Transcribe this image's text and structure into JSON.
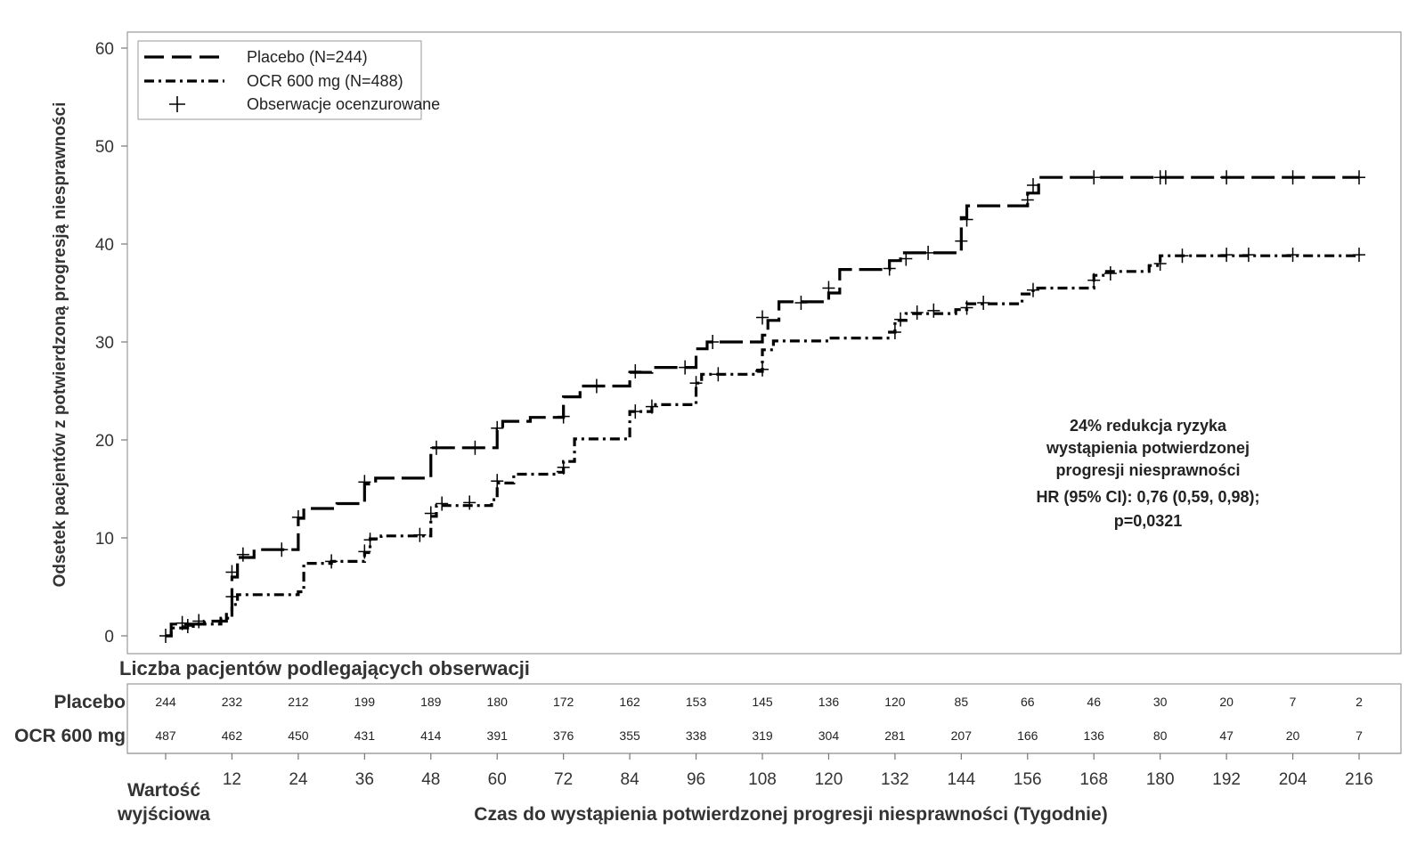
{
  "chart_data": {
    "type": "line",
    "title": "",
    "ylabel": "Odsetek pacjentów z potwierdzoną progresją niesprawności",
    "xlabel": "Czas do wystąpienia potwierdzonej progresji niesprawności (Tygodnie)",
    "baseline_label": [
      "Wartość",
      "wyjściowa"
    ],
    "ylim": [
      0,
      60
    ],
    "xlim": [
      0,
      216
    ],
    "yticks": [
      0,
      10,
      20,
      30,
      40,
      50,
      60
    ],
    "xticks": [
      12,
      24,
      36,
      48,
      60,
      72,
      84,
      96,
      108,
      120,
      132,
      144,
      156,
      168,
      180,
      192,
      204,
      216
    ],
    "legend_position": "top-left",
    "legend": {
      "placebo": "Placebo (N=244)",
      "ocr": "OCR 600 mg (N=488)",
      "censored": "Obserwacje ocenzurowane"
    },
    "annotation": [
      "24% redukcja ryzyka",
      "wystąpienia  potwierdzonej",
      "progresji niesprawności",
      "HR (95% CI): 0,76 (0,59, 0,98);",
      "p=0,0321"
    ],
    "series": [
      {
        "name": "Placebo (N=244)",
        "style": "dashed",
        "color": "#000000",
        "steps": [
          [
            0,
            0
          ],
          [
            1,
            1.2
          ],
          [
            7,
            1.5
          ],
          [
            11,
            2.5
          ],
          [
            12,
            6.0
          ],
          [
            13,
            8.0
          ],
          [
            16,
            8.8
          ],
          [
            24,
            12.0
          ],
          [
            25,
            13.0
          ],
          [
            31,
            13.5
          ],
          [
            36,
            15.5
          ],
          [
            38,
            16.1
          ],
          [
            48,
            19.2
          ],
          [
            60,
            21.0
          ],
          [
            61,
            21.9
          ],
          [
            66,
            22.3
          ],
          [
            72,
            24.4
          ],
          [
            75,
            25.5
          ],
          [
            84,
            26.9
          ],
          [
            88,
            27.4
          ],
          [
            96,
            29.3
          ],
          [
            98,
            30.0
          ],
          [
            108,
            30.7
          ],
          [
            109,
            32.2
          ],
          [
            111,
            34.1
          ],
          [
            120,
            35.0
          ],
          [
            122,
            37.4
          ],
          [
            131,
            38.3
          ],
          [
            133,
            39.1
          ],
          [
            144,
            42.7
          ],
          [
            145,
            43.9
          ],
          [
            156,
            45.2
          ],
          [
            158,
            46.8
          ],
          [
            216,
            46.8
          ]
        ],
        "censored": [
          [
            3,
            1.3
          ],
          [
            6,
            1.5
          ],
          [
            12,
            6.5
          ],
          [
            14,
            8.3
          ],
          [
            21,
            8.8
          ],
          [
            24,
            12.1
          ],
          [
            36,
            15.7
          ],
          [
            49,
            19.2
          ],
          [
            56,
            19.2
          ],
          [
            60,
            21.2
          ],
          [
            72,
            22.4
          ],
          [
            78,
            25.5
          ],
          [
            85,
            27.0
          ],
          [
            94,
            27.4
          ],
          [
            99,
            30.0
          ],
          [
            108,
            32.5
          ],
          [
            115,
            34.0
          ],
          [
            120,
            35.5
          ],
          [
            131,
            37.5
          ],
          [
            134,
            38.5
          ],
          [
            138,
            39.1
          ],
          [
            144,
            40.3
          ],
          [
            145,
            42.5
          ],
          [
            156,
            44.5
          ],
          [
            157,
            46.0
          ],
          [
            168,
            46.8
          ],
          [
            180,
            46.8
          ],
          [
            181,
            46.8
          ],
          [
            192,
            46.8
          ],
          [
            204,
            46.8
          ],
          [
            216,
            46.8
          ]
        ]
      },
      {
        "name": "OCR 600 mg (N=488)",
        "style": "dash-dot",
        "color": "#000000",
        "steps": [
          [
            0,
            0
          ],
          [
            1,
            0.8
          ],
          [
            5,
            1.2
          ],
          [
            10,
            1.8
          ],
          [
            12,
            3.2
          ],
          [
            13,
            4.2
          ],
          [
            24,
            4.5
          ],
          [
            25,
            7.4
          ],
          [
            30,
            7.6
          ],
          [
            36,
            8.5
          ],
          [
            37,
            9.9
          ],
          [
            39,
            10.2
          ],
          [
            48,
            12.2
          ],
          [
            49,
            13.3
          ],
          [
            59,
            13.9
          ],
          [
            60,
            15.6
          ],
          [
            63,
            16.5
          ],
          [
            71,
            16.7
          ],
          [
            72,
            17.8
          ],
          [
            74,
            20.1
          ],
          [
            84,
            22.9
          ],
          [
            88,
            23.6
          ],
          [
            96,
            25.8
          ],
          [
            97,
            26.7
          ],
          [
            107,
            27.0
          ],
          [
            108,
            29.2
          ],
          [
            110,
            30.1
          ],
          [
            120,
            30.4
          ],
          [
            131,
            31.0
          ],
          [
            132,
            32.2
          ],
          [
            134,
            32.9
          ],
          [
            143,
            33.3
          ],
          [
            145,
            33.9
          ],
          [
            155,
            34.9
          ],
          [
            157,
            35.5
          ],
          [
            168,
            36.8
          ],
          [
            170,
            37.2
          ],
          [
            178,
            37.8
          ],
          [
            180,
            38.8
          ],
          [
            216,
            38.9
          ]
        ],
        "censored": [
          [
            0,
            0
          ],
          [
            4,
            1.0
          ],
          [
            12,
            4.0
          ],
          [
            30,
            7.6
          ],
          [
            36,
            8.6
          ],
          [
            37,
            9.8
          ],
          [
            46,
            10.3
          ],
          [
            48,
            12.5
          ],
          [
            50,
            13.5
          ],
          [
            55,
            13.6
          ],
          [
            60,
            15.8
          ],
          [
            72,
            17.2
          ],
          [
            85,
            22.9
          ],
          [
            88,
            23.4
          ],
          [
            96,
            25.8
          ],
          [
            100,
            26.7
          ],
          [
            108,
            27.2
          ],
          [
            132,
            31.0
          ],
          [
            133,
            32.3
          ],
          [
            136,
            33.0
          ],
          [
            139,
            33.2
          ],
          [
            145,
            33.5
          ],
          [
            148,
            34.0
          ],
          [
            157,
            35.3
          ],
          [
            168,
            36.3
          ],
          [
            171,
            37.0
          ],
          [
            180,
            38.0
          ],
          [
            184,
            38.8
          ],
          [
            192,
            38.9
          ],
          [
            196,
            38.9
          ],
          [
            204,
            38.9
          ],
          [
            216,
            38.9
          ]
        ]
      }
    ]
  },
  "risk_table": {
    "title": "Liczba pacjentów  podlegających  obserwacji",
    "times": [
      0,
      12,
      24,
      36,
      48,
      60,
      72,
      84,
      96,
      108,
      120,
      132,
      144,
      156,
      168,
      180,
      192,
      204,
      216
    ],
    "rows": [
      {
        "label": "Placebo",
        "values": [
          "244",
          "232",
          "212",
          "199",
          "189",
          "180",
          "172",
          "162",
          "153",
          "145",
          "136",
          "120",
          "85",
          "66",
          "46",
          "30",
          "20",
          "7",
          "2"
        ]
      },
      {
        "label": "OCR 600 mg",
        "values": [
          "487",
          "462",
          "450",
          "431",
          "414",
          "391",
          "376",
          "355",
          "338",
          "319",
          "304",
          "281",
          "207",
          "166",
          "136",
          "80",
          "47",
          "20",
          "7"
        ]
      }
    ]
  }
}
